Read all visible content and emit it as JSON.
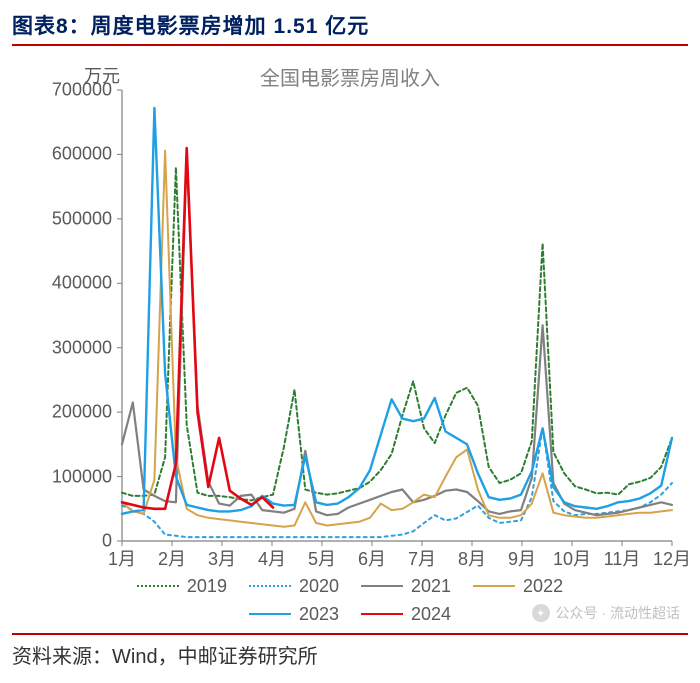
{
  "title": "图表8：周度电影票房增加 1.51 亿元",
  "source": "资料来源：Wind，中邮证券研究所",
  "watermark": "公众号 · 流动性超话",
  "chart": {
    "type": "line",
    "chart_title": "全国电影票房周收入",
    "y_unit": "万元",
    "background_color": "#ffffff",
    "axis_color": "#808080",
    "ylim": [
      0,
      700000
    ],
    "ytick_step": 100000,
    "yticks": [
      "0",
      "100000",
      "200000",
      "300000",
      "400000",
      "500000",
      "600000",
      "700000"
    ],
    "xticks": [
      "1月",
      "2月",
      "3月",
      "4月",
      "5月",
      "6月",
      "7月",
      "8月",
      "9月",
      "10月",
      "11月",
      "12月"
    ],
    "n_points": 52,
    "series": [
      {
        "name": "2019",
        "color": "#2e7d32",
        "dash": "4,3",
        "width": 2,
        "data": [
          75000,
          70000,
          70000,
          72000,
          130000,
          580000,
          180000,
          75000,
          70000,
          70000,
          68000,
          65000,
          63000,
          68000,
          72000,
          145000,
          235000,
          80000,
          75000,
          72000,
          74000,
          78000,
          82000,
          92000,
          110000,
          135000,
          195000,
          248000,
          175000,
          152000,
          195000,
          230000,
          238000,
          210000,
          115000,
          90000,
          95000,
          105000,
          155000,
          462000,
          138000,
          105000,
          85000,
          80000,
          74000,
          75000,
          72000,
          88000,
          92000,
          98000,
          115000,
          160000
        ]
      },
      {
        "name": "2020",
        "color": "#2f9fe0",
        "dash": "3,4",
        "width": 2,
        "data": [
          55000,
          48000,
          42000,
          30000,
          10000,
          8000,
          6000,
          6000,
          6000,
          6000,
          6000,
          6000,
          6000,
          6000,
          6000,
          6000,
          6000,
          6000,
          6000,
          6000,
          6000,
          6000,
          6000,
          6000,
          6000,
          8000,
          10000,
          15000,
          28000,
          40000,
          32000,
          35000,
          45000,
          55000,
          36000,
          28000,
          30000,
          32000,
          68000,
          176000,
          62000,
          46000,
          40000,
          42000,
          42000,
          44000,
          46000,
          48000,
          52000,
          60000,
          72000,
          90000
        ]
      },
      {
        "name": "2021",
        "color": "#808080",
        "dash": "",
        "width": 2.2,
        "data": [
          150000,
          215000,
          80000,
          70000,
          62000,
          60000,
          602000,
          210000,
          92000,
          58000,
          55000,
          70000,
          72000,
          48000,
          46000,
          44000,
          50000,
          140000,
          46000,
          40000,
          42000,
          52000,
          58000,
          64000,
          70000,
          76000,
          80000,
          60000,
          64000,
          70000,
          78000,
          80000,
          76000,
          62000,
          46000,
          42000,
          46000,
          48000,
          98000,
          335000,
          90000,
          58000,
          48000,
          44000,
          40000,
          42000,
          44000,
          48000,
          52000,
          56000,
          60000,
          56000
        ]
      },
      {
        "name": "2022",
        "color": "#d6a34a",
        "dash": "",
        "width": 2,
        "data": [
          60000,
          46000,
          42000,
          95000,
          606000,
          130000,
          50000,
          40000,
          36000,
          34000,
          32000,
          30000,
          28000,
          26000,
          24000,
          22000,
          24000,
          60000,
          28000,
          24000,
          26000,
          28000,
          30000,
          36000,
          58000,
          48000,
          50000,
          60000,
          72000,
          68000,
          100000,
          130000,
          142000,
          80000,
          40000,
          36000,
          36000,
          40000,
          58000,
          105000,
          44000,
          40000,
          38000,
          36000,
          36000,
          38000,
          40000,
          42000,
          44000,
          44000,
          46000,
          48000
        ]
      },
      {
        "name": "2023",
        "color": "#1ea0e6",
        "dash": "",
        "width": 2.4,
        "data": [
          42000,
          46000,
          48000,
          672000,
          260000,
          100000,
          56000,
          52000,
          48000,
          46000,
          46000,
          48000,
          54000,
          70000,
          58000,
          55000,
          56000,
          132000,
          60000,
          56000,
          58000,
          68000,
          82000,
          110000,
          165000,
          220000,
          190000,
          186000,
          190000,
          222000,
          170000,
          160000,
          150000,
          105000,
          68000,
          64000,
          66000,
          72000,
          108000,
          175000,
          84000,
          60000,
          54000,
          52000,
          50000,
          54000,
          60000,
          62000,
          66000,
          74000,
          86000,
          160000
        ]
      },
      {
        "name": "2024",
        "color": "#e30613",
        "dash": "",
        "width": 2.6,
        "data": [
          60000,
          56000,
          52000,
          50000,
          50000,
          120000,
          610000,
          200000,
          84000,
          160000,
          78000,
          66000,
          56000,
          68000,
          52000
        ]
      }
    ],
    "legend_rows": 2,
    "title_fontsize": 20,
    "axis_fontsize": 18,
    "legend_fontsize": 18
  }
}
